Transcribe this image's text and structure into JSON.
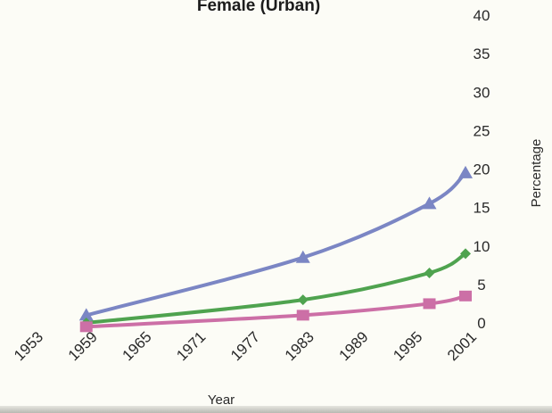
{
  "chart_data": {
    "type": "line",
    "title": "Female (Urban)",
    "xlabel": "Year",
    "ylabel": "Percentage",
    "x_ticks": [
      "1953",
      "1959",
      "1965",
      "1971",
      "1977",
      "1983",
      "1989",
      "1995",
      "2001"
    ],
    "y_ticks": [
      "0",
      "5",
      "10",
      "15",
      "20",
      "25",
      "30",
      "35",
      "40"
    ],
    "xlim": [
      1953,
      2001
    ],
    "ylim": [
      0,
      40
    ],
    "grid": false,
    "legend": "none",
    "series": [
      {
        "color": "#7b86c4",
        "marker": "triangle",
        "x": [
          1959,
          1983,
          1997,
          2001
        ],
        "y": [
          1,
          8.5,
          15.5,
          19.5
        ]
      },
      {
        "color": "#4fa34f",
        "marker": "diamond",
        "x": [
          1959,
          1983,
          1997,
          2001
        ],
        "y": [
          0,
          3,
          6.5,
          9
        ]
      },
      {
        "color": "#cc6fa6",
        "marker": "square",
        "x": [
          1959,
          1983,
          1997,
          2001
        ],
        "y": [
          -0.5,
          1,
          2.5,
          3.5
        ]
      }
    ]
  }
}
